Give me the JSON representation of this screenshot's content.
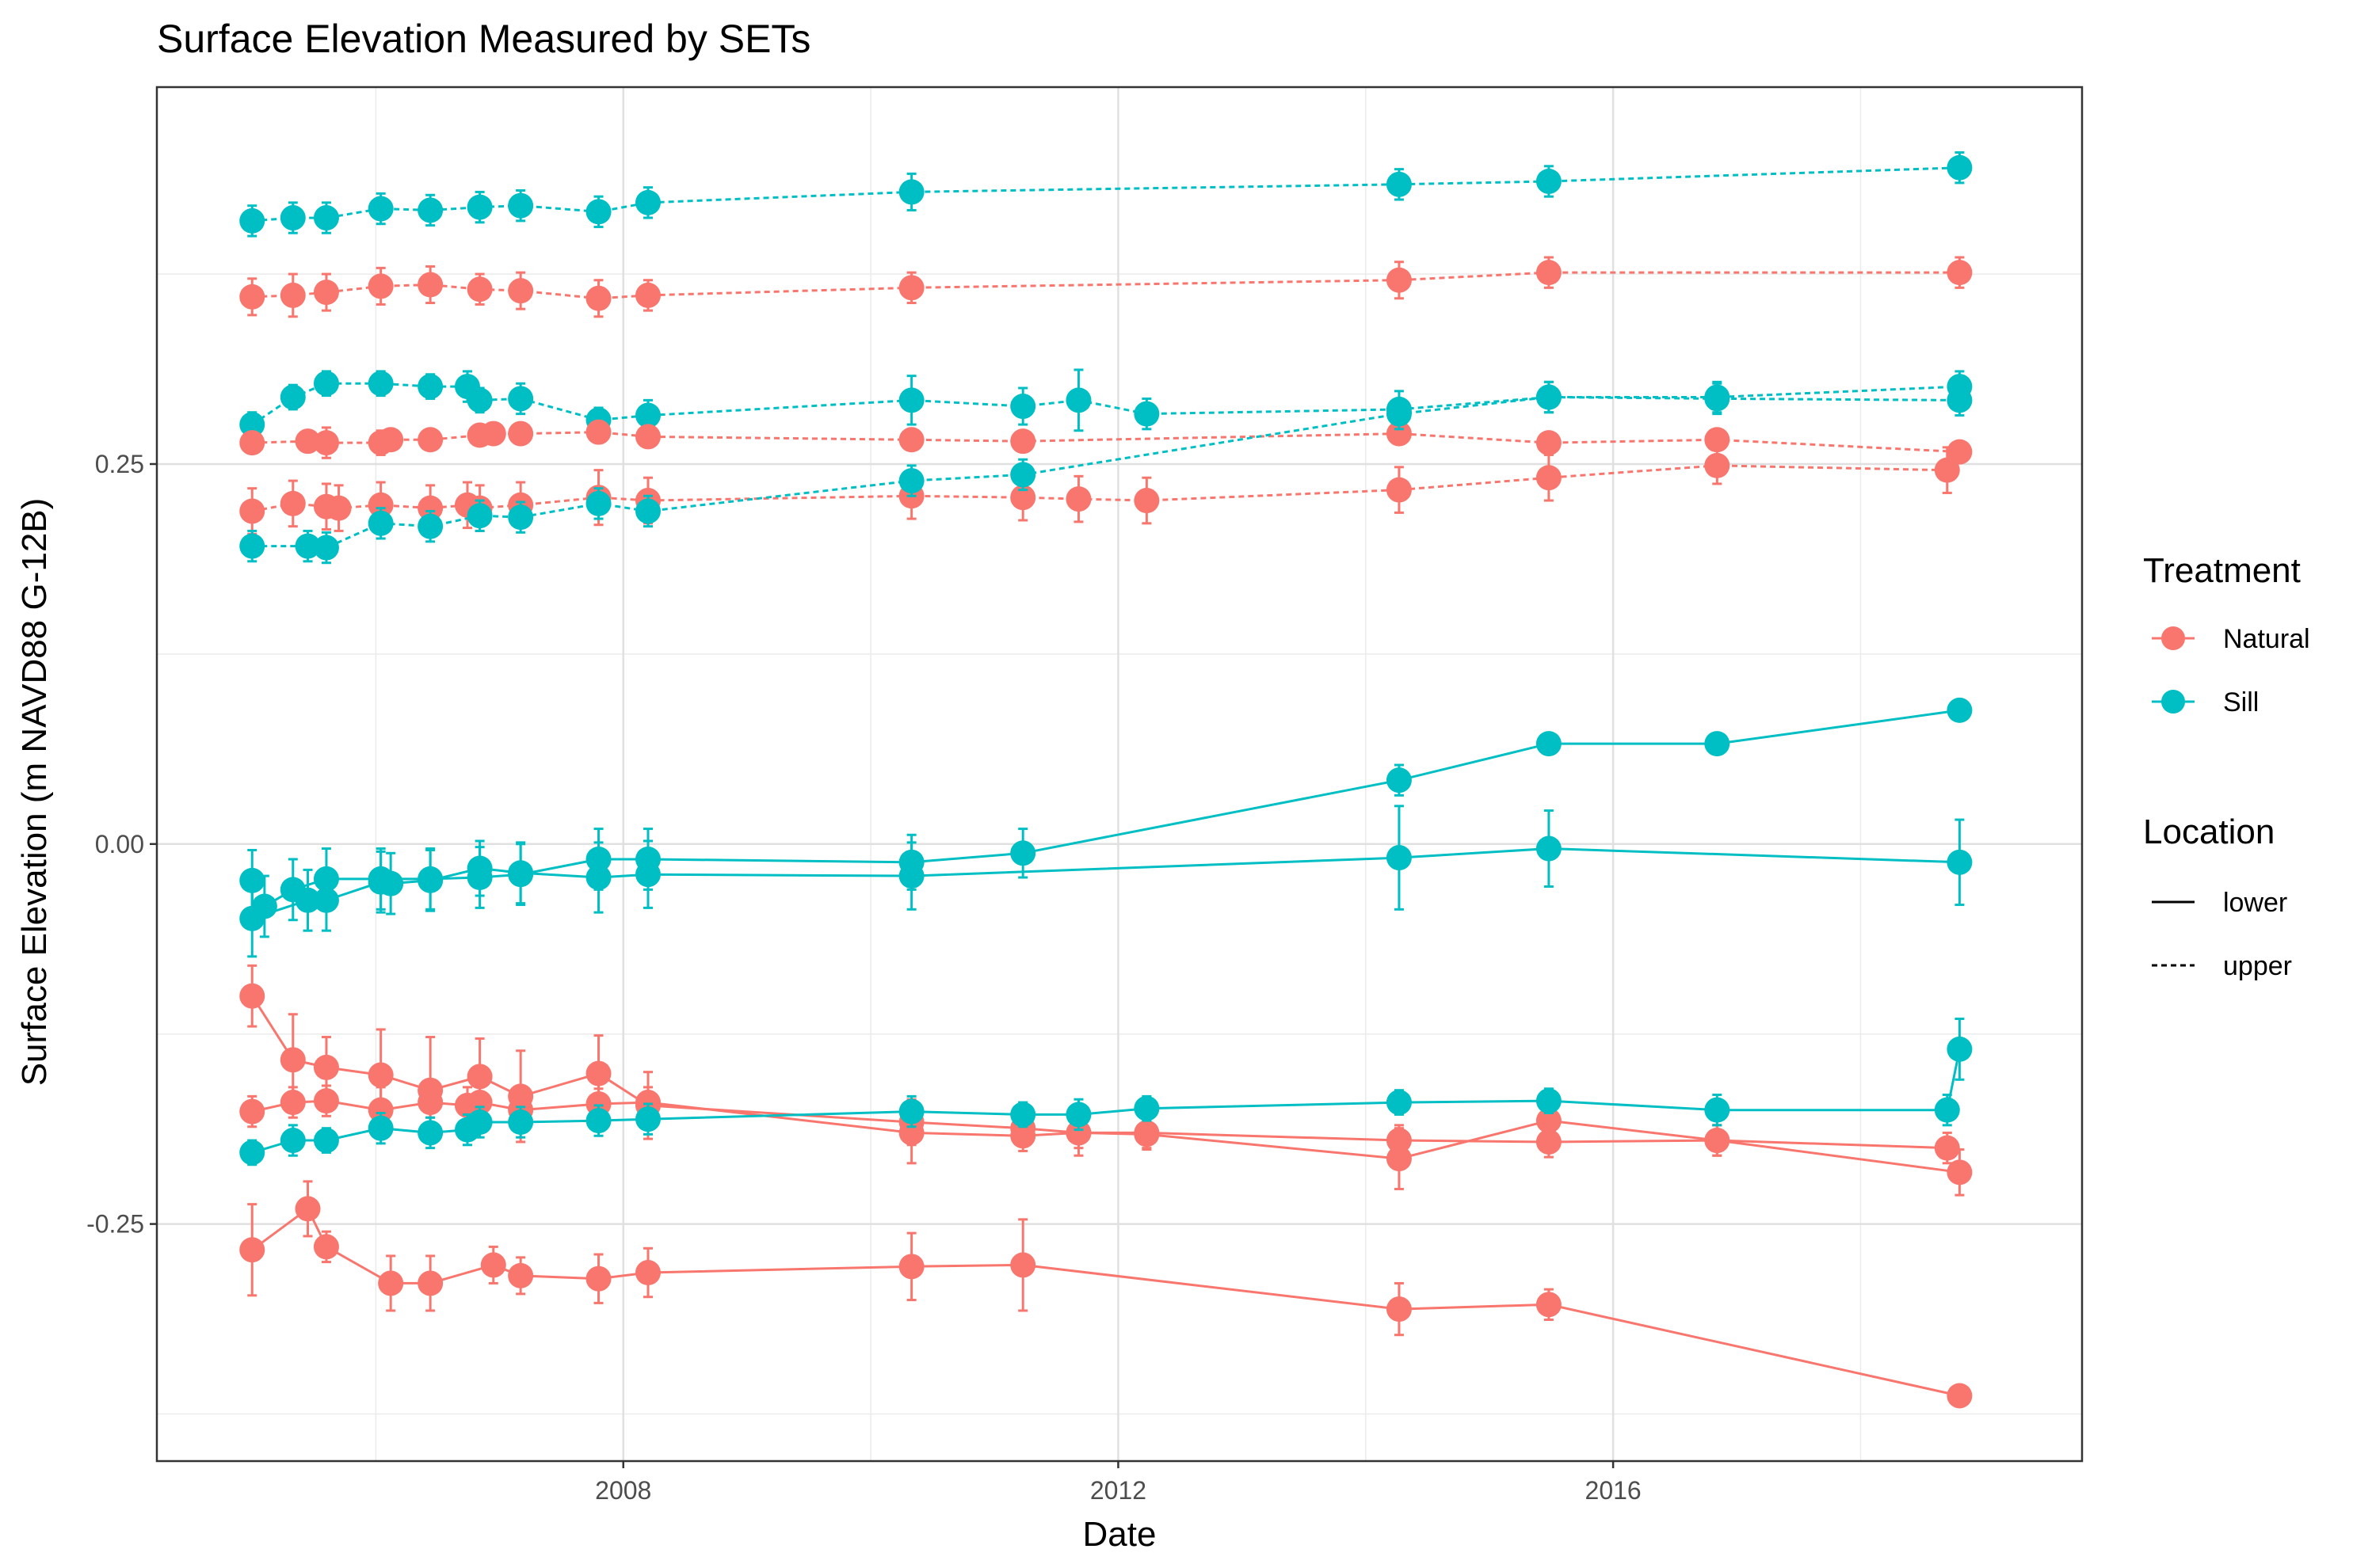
{
  "chart_data": {
    "type": "line",
    "title": "Surface Elevation Measured by SETs",
    "xlabel": "Date",
    "ylabel": "Surface Elevation (m NAVD88 G-12B)",
    "xlim": [
      2004.23,
      2019.79
    ],
    "ylim": [
      -0.406,
      0.498
    ],
    "x_ticks": [
      2008,
      2012,
      2016
    ],
    "x_tick_labels": [
      "2008",
      "2012",
      "2016"
    ],
    "y_ticks": [
      -0.25,
      0.0,
      0.25
    ],
    "y_tick_labels": [
      "-0.25",
      "0.00",
      "0.25"
    ],
    "grid": true,
    "legend_placement": "right",
    "colors": {
      "Natural": "#F8766D",
      "Sill": "#00BFC4"
    },
    "legend": {
      "treatment_title": "Treatment",
      "treatment_items": [
        {
          "label": "Natural",
          "color": "#F8766D"
        },
        {
          "label": "Sill",
          "color": "#00BFC4"
        }
      ],
      "location_title": "Location",
      "location_items": [
        {
          "label": "lower",
          "dash": "solid"
        },
        {
          "label": "upper",
          "dash": "dashed"
        }
      ]
    },
    "series": [
      {
        "treatment": "Sill",
        "location": "upper",
        "points": [
          [
            2005.0,
            0.41,
            0.01
          ],
          [
            2005.33,
            0.412,
            0.01
          ],
          [
            2005.6,
            0.412,
            0.01
          ],
          [
            2006.04,
            0.418,
            0.01
          ],
          [
            2006.44,
            0.417,
            0.01
          ],
          [
            2006.84,
            0.419,
            0.01
          ],
          [
            2007.17,
            0.42,
            0.01
          ],
          [
            2007.8,
            0.416,
            0.01
          ],
          [
            2008.2,
            0.422,
            0.01
          ],
          [
            2010.33,
            0.429,
            0.012
          ],
          [
            2014.27,
            0.434,
            0.01
          ],
          [
            2015.48,
            0.436,
            0.01
          ],
          [
            2018.8,
            0.445,
            0.01
          ]
        ]
      },
      {
        "treatment": "Natural",
        "location": "upper",
        "points": [
          [
            2005.0,
            0.36,
            0.012
          ],
          [
            2005.33,
            0.361,
            0.014
          ],
          [
            2005.6,
            0.363,
            0.012
          ],
          [
            2006.04,
            0.367,
            0.012
          ],
          [
            2006.44,
            0.368,
            0.012
          ],
          [
            2006.84,
            0.365,
            0.01
          ],
          [
            2007.17,
            0.364,
            0.012
          ],
          [
            2007.8,
            0.359,
            0.012
          ],
          [
            2008.2,
            0.361,
            0.01
          ],
          [
            2010.33,
            0.366,
            0.01
          ],
          [
            2014.27,
            0.371,
            0.012
          ],
          [
            2015.48,
            0.376,
            0.01
          ],
          [
            2018.8,
            0.376,
            0.01
          ]
        ]
      },
      {
        "treatment": "Sill",
        "location": "upper",
        "points": [
          [
            2005.0,
            0.276,
            0.008
          ],
          [
            2005.33,
            0.294,
            0.008
          ],
          [
            2005.6,
            0.303,
            0.008
          ],
          [
            2006.04,
            0.303,
            0.008
          ],
          [
            2006.44,
            0.301,
            0.008
          ],
          [
            2006.74,
            0.301,
            0.01
          ],
          [
            2006.84,
            0.292,
            0.008
          ],
          [
            2007.17,
            0.293,
            0.01
          ],
          [
            2007.8,
            0.279,
            0.008
          ],
          [
            2008.2,
            0.282,
            0.01
          ],
          [
            2010.33,
            0.292,
            0.016
          ],
          [
            2011.23,
            0.288,
            0.012
          ],
          [
            2011.68,
            0.292,
            0.02
          ],
          [
            2012.23,
            0.283,
            0.01
          ],
          [
            2014.27,
            0.286,
            0.012
          ],
          [
            2015.48,
            0.294,
            0.01
          ],
          [
            2016.84,
            0.293,
            0.01
          ],
          [
            2018.8,
            0.292,
            0.01
          ]
        ]
      },
      {
        "treatment": "Natural",
        "location": "upper",
        "points": [
          [
            2005.0,
            0.264,
            0.006
          ],
          [
            2005.45,
            0.265,
            0.006
          ],
          [
            2005.6,
            0.264,
            0.01
          ],
          [
            2006.04,
            0.264,
            0.008
          ],
          [
            2006.12,
            0.266,
            0.006
          ],
          [
            2006.44,
            0.266,
            0.006
          ],
          [
            2006.84,
            0.269,
            0.006
          ],
          [
            2006.95,
            0.27,
            0.006
          ],
          [
            2007.17,
            0.27,
            0.006
          ],
          [
            2007.8,
            0.271,
            0.006
          ],
          [
            2008.2,
            0.268,
            0.006
          ],
          [
            2010.33,
            0.266,
            0.006
          ],
          [
            2011.23,
            0.265,
            0.006
          ],
          [
            2014.27,
            0.27,
            0.006
          ],
          [
            2015.48,
            0.264,
            0.006
          ],
          [
            2016.84,
            0.266,
            0.006
          ],
          [
            2018.8,
            0.258,
            0.006
          ]
        ]
      },
      {
        "treatment": "Natural",
        "location": "upper",
        "points": [
          [
            2005.0,
            0.219,
            0.015
          ],
          [
            2005.33,
            0.224,
            0.015
          ],
          [
            2005.6,
            0.222,
            0.015
          ],
          [
            2005.7,
            0.221,
            0.015
          ],
          [
            2006.04,
            0.223,
            0.015
          ],
          [
            2006.44,
            0.221,
            0.015
          ],
          [
            2006.74,
            0.223,
            0.015
          ],
          [
            2006.84,
            0.221,
            0.015
          ],
          [
            2007.17,
            0.223,
            0.015
          ],
          [
            2007.8,
            0.228,
            0.018
          ],
          [
            2008.2,
            0.226,
            0.015
          ],
          [
            2010.33,
            0.229,
            0.015
          ],
          [
            2011.23,
            0.228,
            0.015
          ],
          [
            2011.68,
            0.227,
            0.015
          ],
          [
            2012.23,
            0.226,
            0.015
          ],
          [
            2014.27,
            0.233,
            0.015
          ],
          [
            2015.48,
            0.241,
            0.015
          ],
          [
            2016.84,
            0.249,
            0.012
          ],
          [
            2018.7,
            0.246,
            0.015
          ]
        ]
      },
      {
        "treatment": "Sill",
        "location": "upper",
        "points": [
          [
            2005.0,
            0.196,
            0.01
          ],
          [
            2005.45,
            0.196,
            0.01
          ],
          [
            2005.6,
            0.195,
            0.01
          ],
          [
            2006.04,
            0.211,
            0.01
          ],
          [
            2006.44,
            0.209,
            0.01
          ],
          [
            2006.84,
            0.216,
            0.01
          ],
          [
            2007.17,
            0.215,
            0.01
          ],
          [
            2007.8,
            0.224,
            0.01
          ],
          [
            2008.2,
            0.219,
            0.01
          ],
          [
            2010.33,
            0.239,
            0.01
          ],
          [
            2011.23,
            0.243,
            0.01
          ],
          [
            2014.27,
            0.283,
            0.01
          ],
          [
            2015.48,
            0.294,
            0.01
          ],
          [
            2016.84,
            0.294,
            0.01
          ],
          [
            2018.8,
            0.301,
            0.01
          ]
        ]
      },
      {
        "treatment": "Sill",
        "location": "lower",
        "points": [
          [
            2005.1,
            -0.041,
            0.02
          ],
          [
            2005.33,
            -0.03,
            0.02
          ],
          [
            2005.6,
            -0.023,
            0.02
          ],
          [
            2006.04,
            -0.023,
            0.02
          ],
          [
            2006.44,
            -0.023,
            0.02
          ],
          [
            2006.84,
            -0.022,
            0.02
          ],
          [
            2007.17,
            -0.02,
            0.02
          ],
          [
            2007.8,
            -0.01,
            0.02
          ],
          [
            2008.2,
            -0.01,
            0.02
          ],
          [
            2010.33,
            -0.012,
            0.018
          ],
          [
            2011.23,
            -0.006,
            0.016
          ],
          [
            2014.27,
            0.042,
            0.01
          ],
          [
            2015.48,
            0.066,
            0.006
          ],
          [
            2016.84,
            0.066,
            0.006
          ],
          [
            2018.8,
            0.088,
            0.006
          ]
        ]
      },
      {
        "treatment": "Sill",
        "location": "lower",
        "points": [
          [
            2005.0,
            -0.024,
            0.02
          ],
          [
            2005.0,
            -0.049,
            0.025
          ],
          [
            2005.45,
            -0.037,
            0.02
          ],
          [
            2005.6,
            -0.037,
            0.02
          ],
          [
            2006.04,
            -0.025,
            0.02
          ],
          [
            2006.12,
            -0.026,
            0.02
          ],
          [
            2006.44,
            -0.024,
            0.02
          ],
          [
            2006.84,
            -0.016,
            0.018
          ],
          [
            2007.17,
            -0.019,
            0.02
          ],
          [
            2007.8,
            -0.022,
            0.023
          ],
          [
            2008.2,
            -0.02,
            0.022
          ],
          [
            2010.33,
            -0.021,
            0.022
          ],
          [
            2014.27,
            -0.009,
            0.034
          ],
          [
            2015.48,
            -0.003,
            0.025
          ],
          [
            2018.8,
            -0.012,
            0.028
          ]
        ]
      },
      {
        "treatment": "Natural",
        "location": "lower",
        "points": [
          [
            2005.0,
            -0.1,
            0.02
          ],
          [
            2005.33,
            -0.142,
            0.03
          ],
          [
            2005.6,
            -0.147,
            0.02
          ],
          [
            2006.04,
            -0.152,
            0.03
          ],
          [
            2006.44,
            -0.162,
            0.035
          ],
          [
            2006.84,
            -0.153,
            0.025
          ],
          [
            2007.17,
            -0.166,
            0.03
          ],
          [
            2007.8,
            -0.151,
            0.025
          ],
          [
            2008.2,
            -0.172,
            0.022
          ],
          [
            2010.33,
            -0.183,
            0.015
          ],
          [
            2011.23,
            -0.187,
            0.01
          ],
          [
            2011.68,
            -0.19,
            0.01
          ],
          [
            2012.23,
            -0.19,
            0.01
          ],
          [
            2014.27,
            -0.195,
            0.01
          ],
          [
            2015.48,
            -0.196,
            0.01
          ],
          [
            2016.84,
            -0.195,
            0.01
          ],
          [
            2018.7,
            -0.2,
            0.01
          ]
        ]
      },
      {
        "treatment": "Natural",
        "location": "lower",
        "points": [
          [
            2005.0,
            -0.176,
            0.01
          ],
          [
            2005.33,
            -0.17,
            0.01
          ],
          [
            2005.6,
            -0.169,
            0.01
          ],
          [
            2006.04,
            -0.175,
            0.015
          ],
          [
            2006.44,
            -0.17,
            0.01
          ],
          [
            2006.74,
            -0.172,
            0.012
          ],
          [
            2006.84,
            -0.17,
            0.012
          ],
          [
            2007.17,
            -0.175,
            0.01
          ],
          [
            2007.8,
            -0.171,
            0.01
          ],
          [
            2008.2,
            -0.17,
            0.01
          ],
          [
            2010.33,
            -0.19,
            0.02
          ],
          [
            2011.23,
            -0.192,
            0.01
          ],
          [
            2011.68,
            -0.19,
            0.015
          ],
          [
            2012.23,
            -0.191,
            0.01
          ],
          [
            2014.27,
            -0.207,
            0.02
          ],
          [
            2015.48,
            -0.182,
            0.01
          ],
          [
            2016.84,
            -0.195,
            0.01
          ],
          [
            2018.8,
            -0.216,
            0.015
          ]
        ]
      },
      {
        "treatment": "Sill",
        "location": "lower",
        "points": [
          [
            2005.0,
            -0.203,
            0.008
          ],
          [
            2005.33,
            -0.195,
            0.01
          ],
          [
            2005.6,
            -0.195,
            0.008
          ],
          [
            2006.04,
            -0.187,
            0.01
          ],
          [
            2006.44,
            -0.19,
            0.01
          ],
          [
            2006.74,
            -0.188,
            0.01
          ],
          [
            2006.84,
            -0.183,
            0.01
          ],
          [
            2007.17,
            -0.183,
            0.01
          ],
          [
            2007.8,
            -0.182,
            0.01
          ],
          [
            2008.2,
            -0.181,
            0.01
          ],
          [
            2010.33,
            -0.176,
            0.01
          ],
          [
            2011.23,
            -0.178,
            0.008
          ],
          [
            2011.68,
            -0.178,
            0.01
          ],
          [
            2012.23,
            -0.174,
            0.008
          ],
          [
            2014.27,
            -0.17,
            0.008
          ],
          [
            2015.48,
            -0.169,
            0.008
          ],
          [
            2016.84,
            -0.175,
            0.01
          ],
          [
            2018.7,
            -0.175,
            0.01
          ],
          [
            2018.8,
            -0.135,
            0.02
          ]
        ]
      },
      {
        "treatment": "Natural",
        "location": "lower",
        "points": [
          [
            2005.0,
            -0.267,
            0.03
          ],
          [
            2005.45,
            -0.24,
            0.018
          ],
          [
            2005.6,
            -0.265,
            0.01
          ],
          [
            2006.12,
            -0.289,
            0.018
          ],
          [
            2006.44,
            -0.289,
            0.018
          ],
          [
            2006.95,
            -0.277,
            0.012
          ],
          [
            2007.17,
            -0.284,
            0.012
          ],
          [
            2007.8,
            -0.286,
            0.016
          ],
          [
            2008.2,
            -0.282,
            0.016
          ],
          [
            2010.33,
            -0.278,
            0.022
          ],
          [
            2011.23,
            -0.277,
            0.03
          ],
          [
            2014.27,
            -0.306,
            0.017
          ],
          [
            2015.48,
            -0.303,
            0.01
          ],
          [
            2018.8,
            -0.363,
            0.005
          ]
        ]
      }
    ]
  }
}
